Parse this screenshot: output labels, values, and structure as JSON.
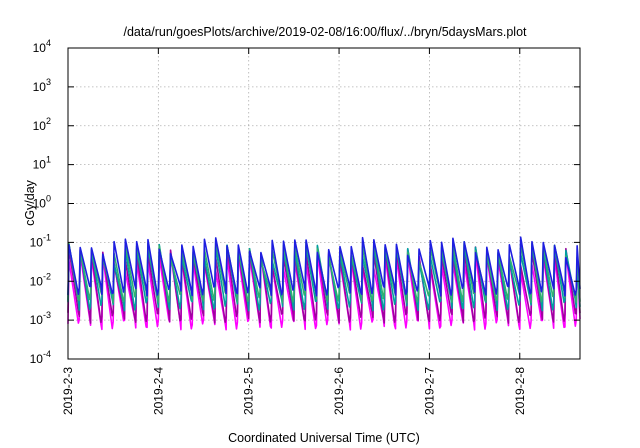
{
  "chart_data": {
    "type": "line",
    "title": "/data/run/goesPlots/archive/2019-02-08/16:00/flux/../bryn/5daysMars.plot",
    "xlabel": "Coordinated Universal Time (UTC)",
    "ylabel": "cGy/day",
    "yscale": "log",
    "ylim": [
      0.0001,
      10000
    ],
    "y_ticks": [
      {
        "value": 0.0001,
        "base": "10",
        "exp": "-4"
      },
      {
        "value": 0.001,
        "base": "10",
        "exp": "-3"
      },
      {
        "value": 0.01,
        "base": "10",
        "exp": "-2"
      },
      {
        "value": 0.1,
        "base": "10",
        "exp": "-1"
      },
      {
        "value": 1,
        "base": "10",
        "exp": "0"
      },
      {
        "value": 10,
        "base": "10",
        "exp": "1"
      },
      {
        "value": 100,
        "base": "10",
        "exp": "2"
      },
      {
        "value": 1000,
        "base": "10",
        "exp": "3"
      },
      {
        "value": 10000,
        "base": "10",
        "exp": "4"
      }
    ],
    "xlim": [
      "2019-02-03",
      "2019-02-08T16:00"
    ],
    "x_ticks": [
      "2019-2-3",
      "2019-2-4",
      "2019-2-5",
      "2019-2-6",
      "2019-2-7",
      "2019-2-8"
    ],
    "grid": true,
    "legend": "none",
    "cycle_hours": 3,
    "series": [
      {
        "color": "#ff00ff",
        "peak": 0.035,
        "trough": 0.0008
      },
      {
        "color": "#a000a0",
        "peak": 0.05,
        "trough": 0.0012
      },
      {
        "color": "#00a0a0",
        "peak": 0.06,
        "trough": 0.0025
      },
      {
        "color": "#30b070",
        "peak": 0.07,
        "trough": 0.004
      },
      {
        "color": "#1e1ee0",
        "peak": 0.09,
        "trough": 0.006
      }
    ]
  }
}
